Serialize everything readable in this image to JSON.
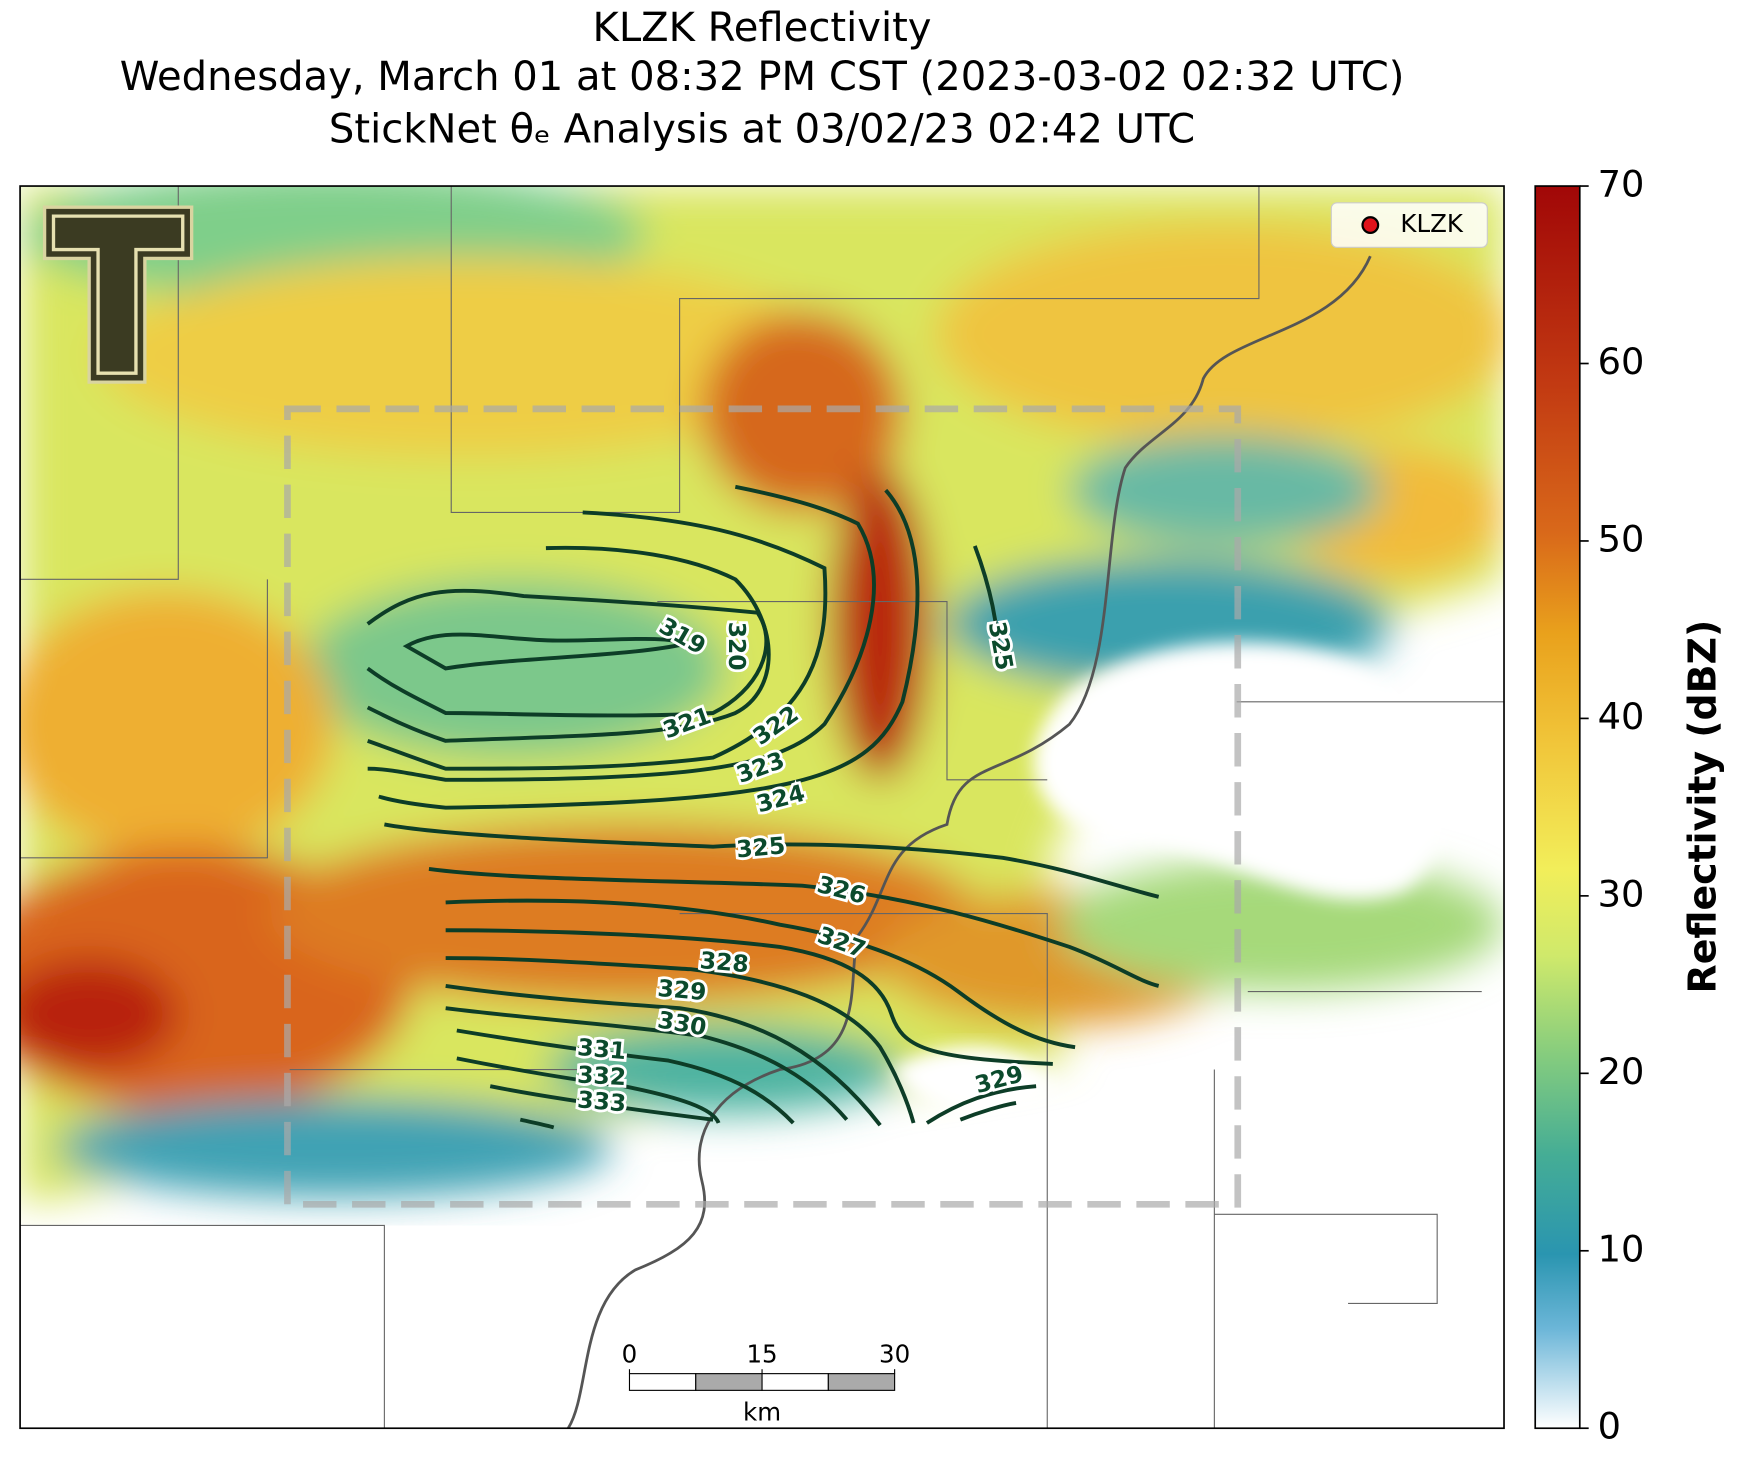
{
  "header": {
    "title": "KLZK Reflectivity",
    "subtitle": "Wednesday, March 01 at 08:32 PM CST (2023-03-02 02:32 UTC)",
    "analysis": "StickNet θₑ Analysis at 03/02/23 02:42 UTC"
  },
  "legend": {
    "station": "KLZK"
  },
  "colorbar": {
    "label": "Reflectivity (dBZ)",
    "ylim": [
      0,
      70
    ],
    "yticks": [
      0,
      10,
      20,
      30,
      40,
      50,
      60,
      70
    ]
  },
  "contours": [
    319,
    320,
    321,
    322,
    323,
    324,
    325,
    326,
    327,
    328,
    329,
    330,
    331,
    332,
    333,
    325,
    329
  ],
  "scale_bar": {
    "xlim": [
      0,
      30
    ],
    "xticks": [
      0,
      15,
      30
    ],
    "unit": "km"
  }
}
